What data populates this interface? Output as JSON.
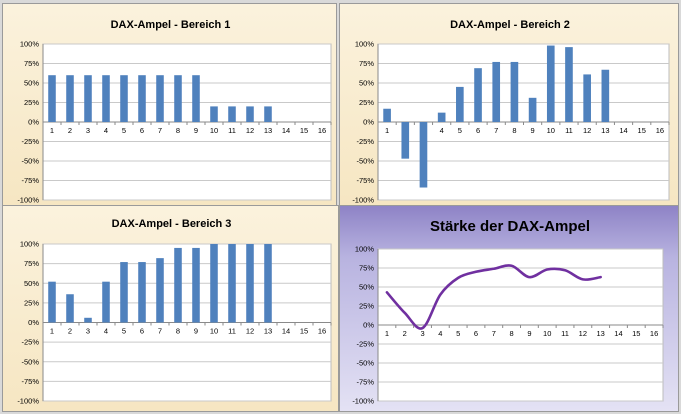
{
  "chart_data": [
    {
      "type": "bar",
      "title": "DAX-Ampel - Bereich 1",
      "categories": [
        "1",
        "2",
        "3",
        "4",
        "5",
        "6",
        "7",
        "8",
        "9",
        "10",
        "11",
        "12",
        "13",
        "14",
        "15",
        "16"
      ],
      "values": [
        60,
        60,
        60,
        60,
        60,
        60,
        60,
        60,
        60,
        20,
        20,
        20,
        20,
        null,
        null,
        null
      ],
      "ylim": [
        -100,
        100
      ],
      "yticks": [
        "100%",
        "75%",
        "50%",
        "25%",
        "0%",
        "-25%",
        "-50%",
        "-75%",
        "-100%"
      ],
      "xlabel": "",
      "ylabel": "",
      "color": "#4f81bd",
      "background": "#fbf2dd"
    },
    {
      "type": "bar",
      "title": "DAX-Ampel - Bereich 2",
      "categories": [
        "1",
        "2",
        "3",
        "4",
        "5",
        "6",
        "7",
        "8",
        "9",
        "10",
        "11",
        "12",
        "13",
        "14",
        "15",
        "16"
      ],
      "values": [
        17,
        -47,
        -84,
        12,
        45,
        69,
        77,
        77,
        31,
        98,
        96,
        61,
        67,
        null,
        null,
        null
      ],
      "ylim": [
        -100,
        100
      ],
      "yticks": [
        "100%",
        "75%",
        "50%",
        "25%",
        "0%",
        "-25%",
        "-50%",
        "-75%",
        "-100%"
      ],
      "xlabel": "",
      "ylabel": "",
      "color": "#4f81bd",
      "background": "#fbf2dd"
    },
    {
      "type": "bar",
      "title": "DAX-Ampel - Bereich 3",
      "categories": [
        "1",
        "2",
        "3",
        "4",
        "5",
        "6",
        "7",
        "8",
        "9",
        "10",
        "11",
        "12",
        "13",
        "14",
        "15",
        "16"
      ],
      "values": [
        52,
        36,
        6,
        52,
        77,
        77,
        82,
        95,
        95,
        100,
        100,
        100,
        100,
        null,
        null,
        null
      ],
      "ylim": [
        -100,
        100
      ],
      "yticks": [
        "100%",
        "75%",
        "50%",
        "25%",
        "0%",
        "-25%",
        "-50%",
        "-75%",
        "-100%"
      ],
      "xlabel": "",
      "ylabel": "",
      "color": "#4f81bd",
      "background": "#fbf2dd"
    },
    {
      "type": "line",
      "title": "Stärke der DAX-Ampel",
      "categories": [
        "1",
        "2",
        "3",
        "4",
        "5",
        "6",
        "7",
        "8",
        "9",
        "10",
        "11",
        "12",
        "13",
        "14",
        "15",
        "16"
      ],
      "values": [
        43,
        16,
        -4,
        40,
        62,
        70,
        74,
        78,
        63,
        73,
        72,
        60,
        63,
        null,
        null,
        null
      ],
      "ylim": [
        -100,
        100
      ],
      "yticks": [
        "100%",
        "75%",
        "50%",
        "25%",
        "0%",
        "-25%",
        "-50%",
        "-75%",
        "-100%"
      ],
      "xlabel": "",
      "ylabel": "",
      "color": "#7030a0",
      "background": "#b8b3e0"
    }
  ]
}
